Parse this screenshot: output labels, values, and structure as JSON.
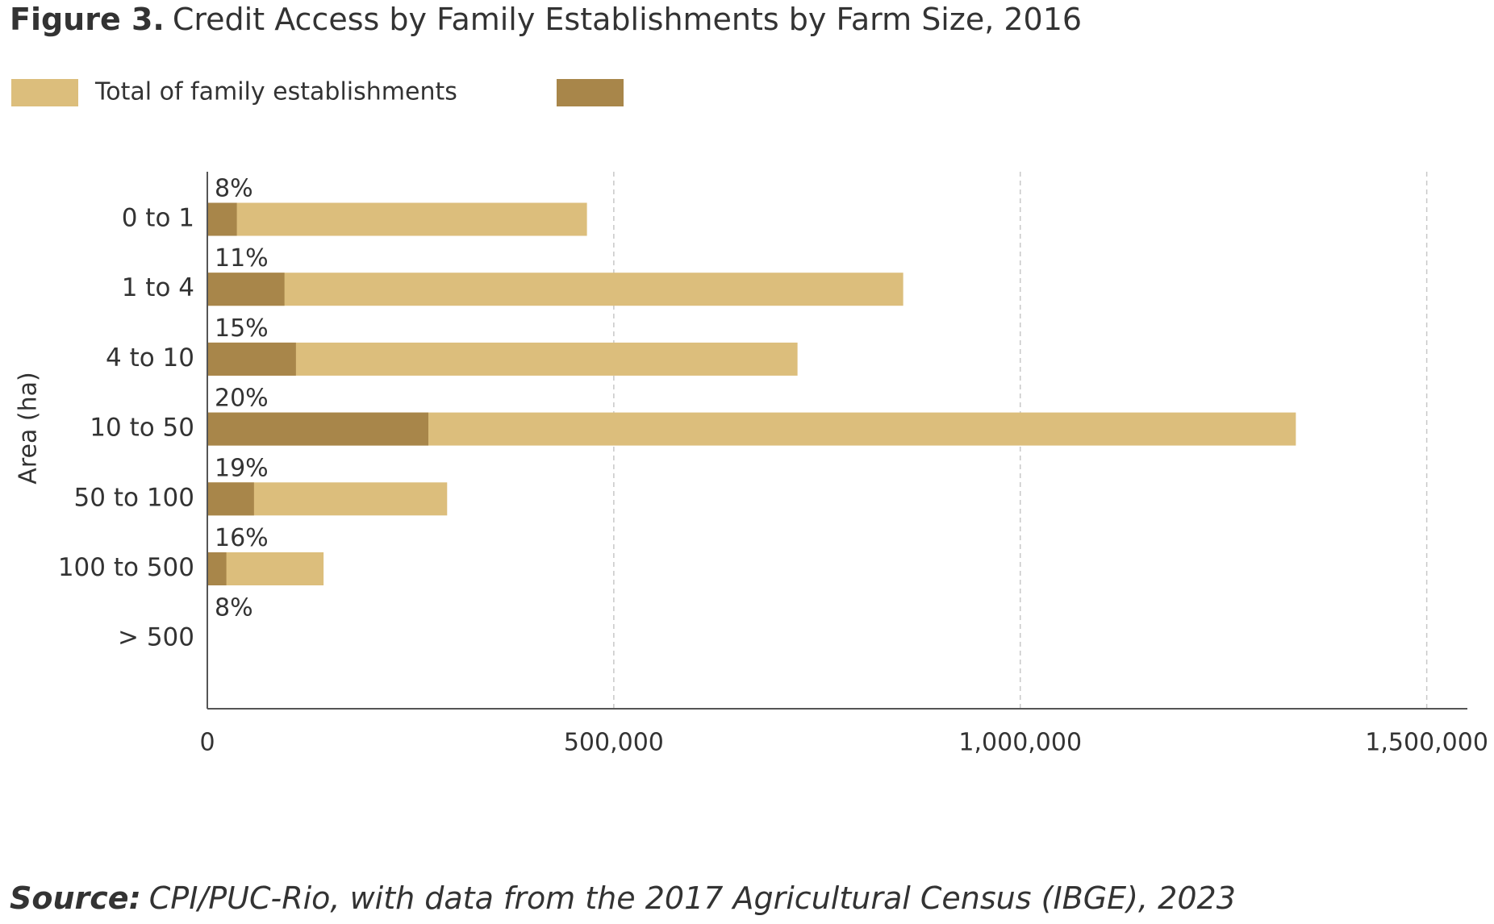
{
  "chart_data": {
    "type": "bar",
    "orientation": "horizontal",
    "title_label": "Figure 3.",
    "title": "Credit Access by Family Establishments by Farm Size, 2016",
    "y_axis_label": "Area (ha)",
    "categories": [
      "0 to 1",
      "1 to 4",
      "4 to 10",
      "10 to 50",
      "50 to 100",
      "100 to 500",
      "> 500"
    ],
    "series": [
      {
        "name": "Total of family establishments",
        "color": "#dcbe7c",
        "values": [
          467000,
          856000,
          726000,
          1339000,
          295000,
          143000,
          0
        ]
      },
      {
        "color": "#a8864a",
        "values": [
          36300,
          94900,
          109000,
          271900,
          57400,
          23400,
          0
        ]
      }
    ],
    "share_labels": [
      "8%",
      "11%",
      "15%",
      "20%",
      "19%",
      "16%",
      "8%"
    ],
    "xlim": [
      0,
      1550000
    ],
    "xticks": [
      0,
      {
        "value": 500000,
        "label": "500,000"
      },
      {
        "value": 1000000,
        "label": "1,000,000"
      },
      {
        "value": 1500000,
        "label": "1,500,000"
      }
    ],
    "grid": true,
    "legend": "top-left",
    "source_label": "Source:",
    "source": "CPI/PUC-Rio, with data from the 2017 Agricultural Census (IBGE), 2023"
  }
}
